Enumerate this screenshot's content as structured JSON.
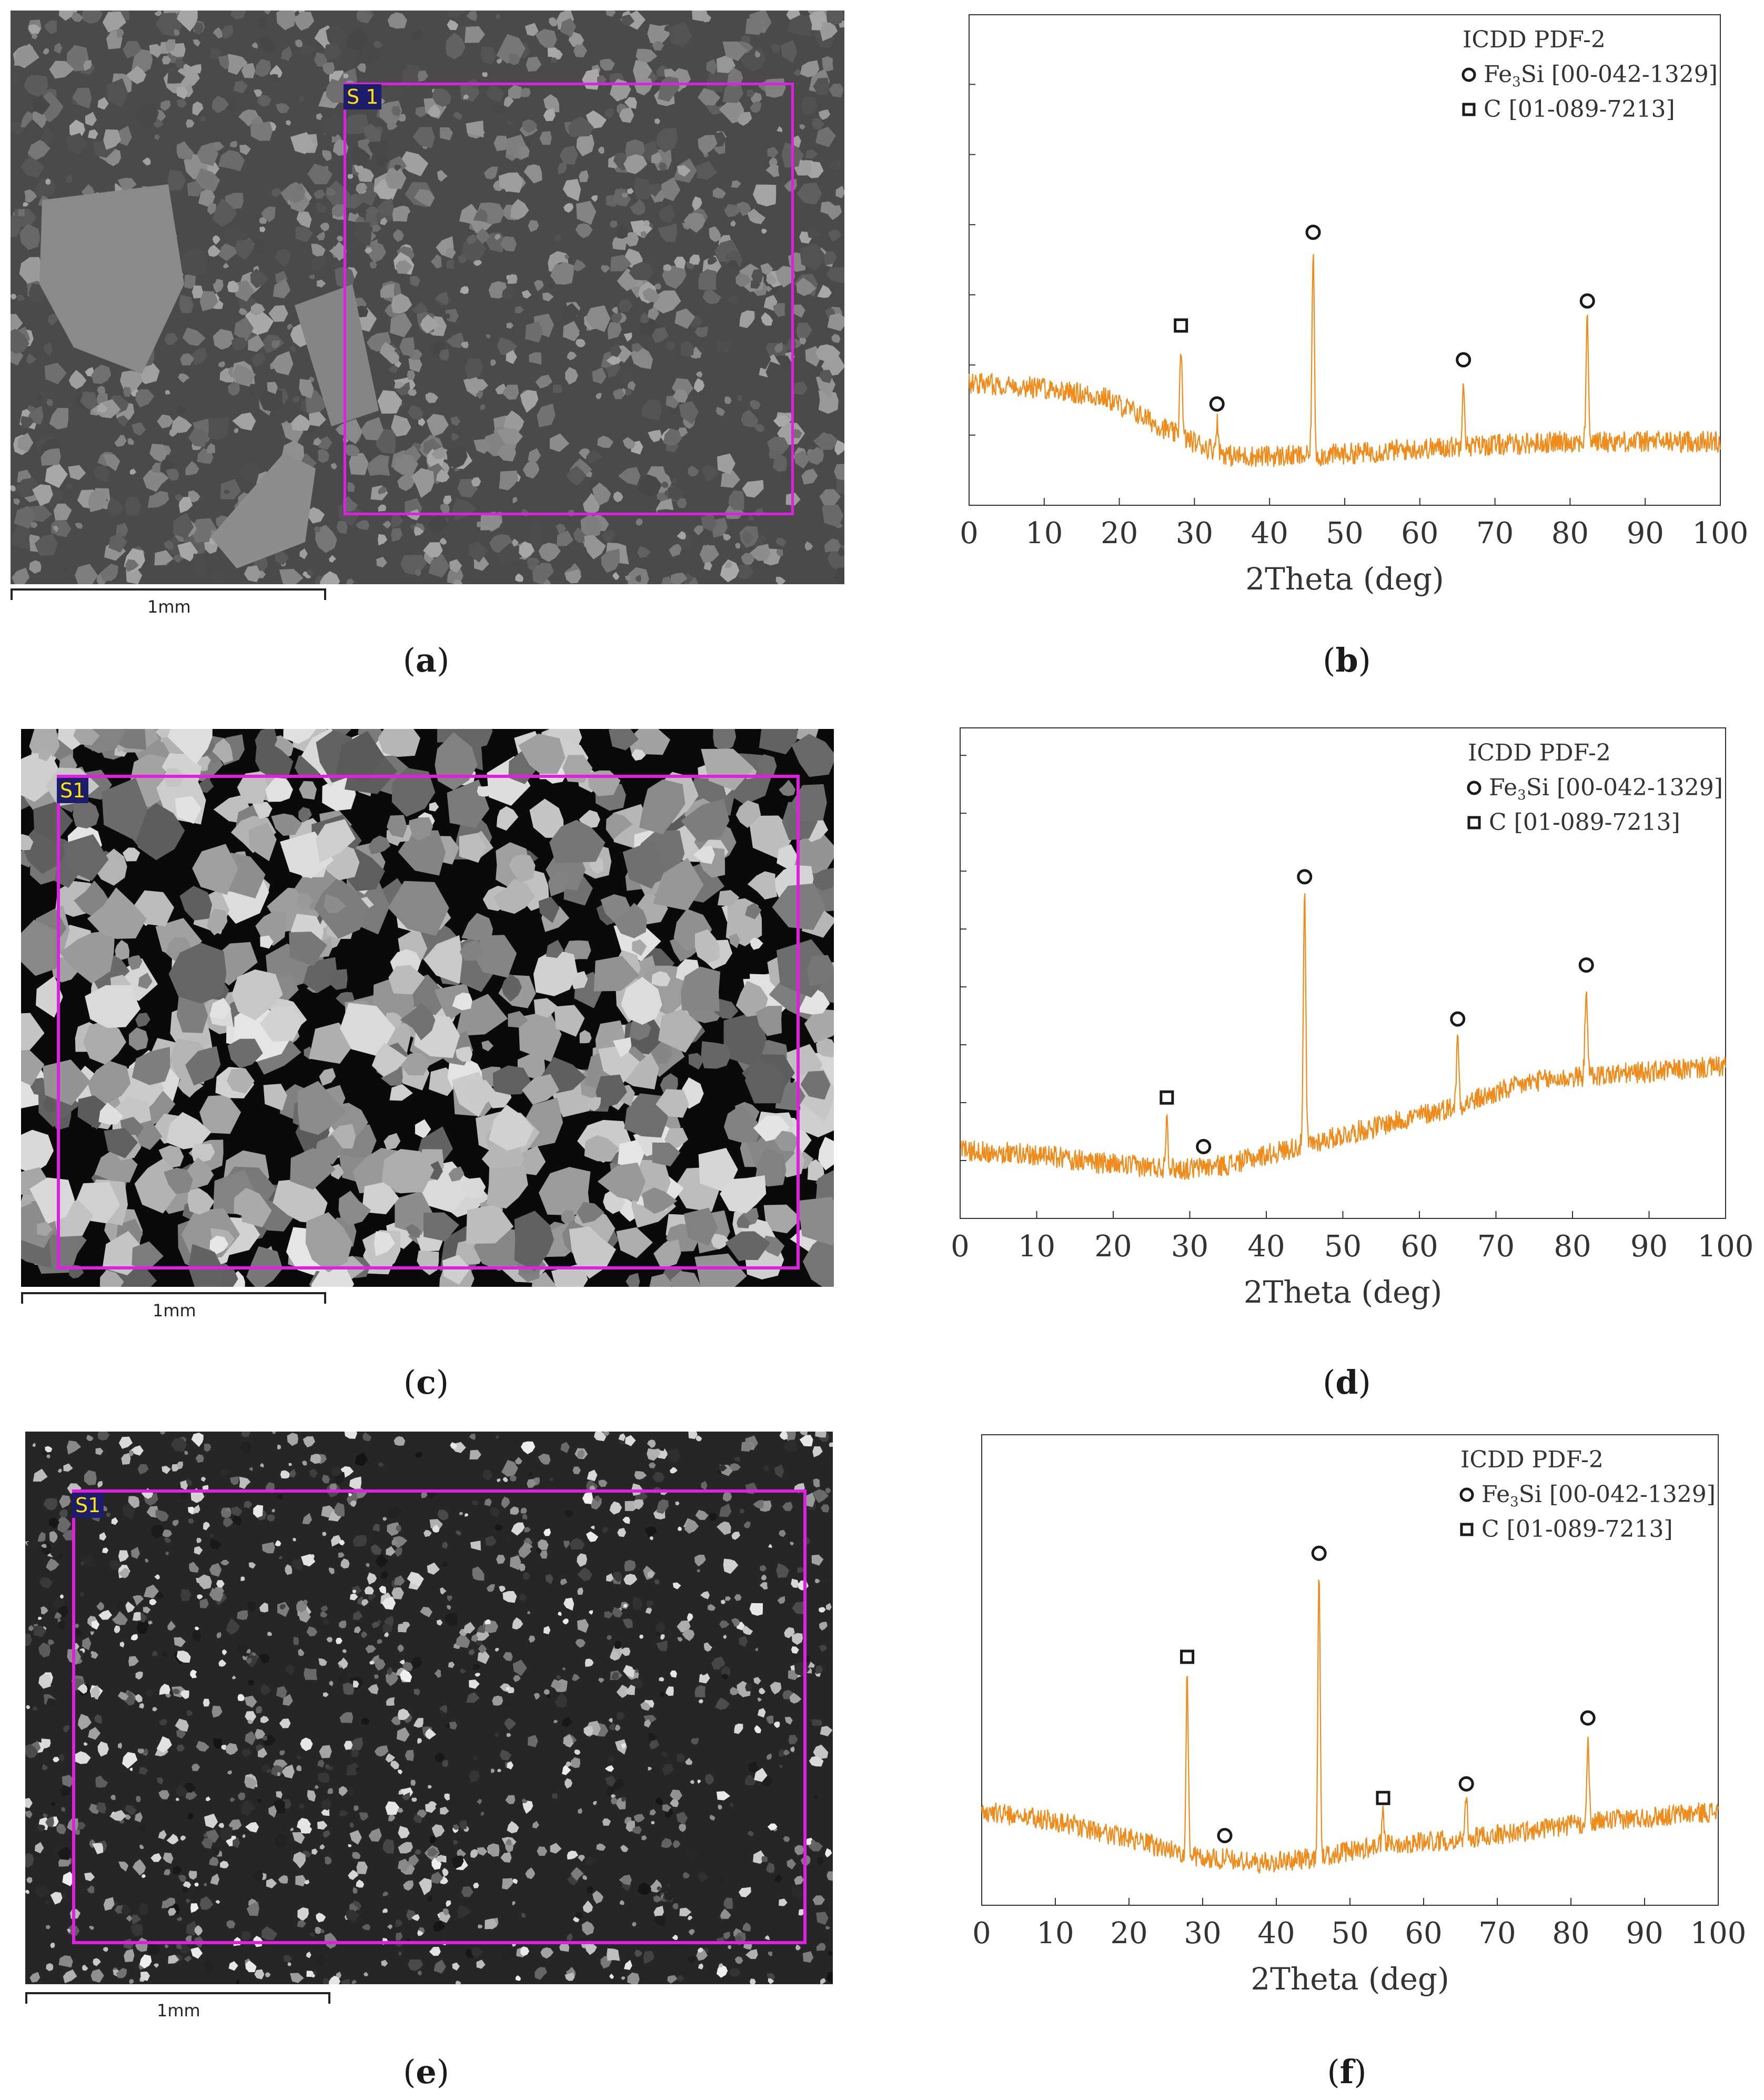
{
  "sem_panels": [
    {
      "id": "a",
      "caption_letter": "a",
      "region_label": "S 1",
      "scale_label": "1mm",
      "style": "grey"
    },
    {
      "id": "c",
      "caption_letter": "c",
      "region_label": "S1",
      "scale_label": "1mm",
      "style": "contrast"
    },
    {
      "id": "e",
      "caption_letter": "e",
      "region_label": "S1",
      "scale_label": "1mm",
      "style": "speckle"
    }
  ],
  "legend": {
    "title": "ICDD PDF-2",
    "entries": [
      {
        "marker": "circle",
        "formula_main": "Fe",
        "formula_sub": "3",
        "formula_rest": "Si",
        "ref": "[00-042-1329]"
      },
      {
        "marker": "square",
        "formula_main": "C",
        "formula_sub": "",
        "formula_rest": "",
        "ref": "[01-089-7213]"
      }
    ]
  },
  "colors": {
    "trace": "#f08a18",
    "accent_magenta": "#e020e0",
    "marker": "#1a1a1a"
  },
  "chart_data": [
    {
      "type": "line",
      "panel": "b",
      "caption_letter": "b",
      "xlabel": "2Theta (deg)",
      "ylabel": "",
      "xlim": [
        0,
        100
      ],
      "xticks": [
        0,
        10,
        20,
        30,
        40,
        50,
        60,
        70,
        80,
        90,
        100
      ],
      "ylim": [
        0,
        100
      ],
      "yticks": [
        0,
        14.3,
        28.6,
        42.9,
        57.2,
        71.5,
        85.8,
        100
      ],
      "grid": false,
      "legend_position": "top-right",
      "baseline": [
        [
          0,
          25
        ],
        [
          10,
          24
        ],
        [
          18,
          22
        ],
        [
          22,
          19
        ],
        [
          28,
          14
        ],
        [
          35,
          10
        ],
        [
          45,
          10
        ],
        [
          55,
          11
        ],
        [
          65,
          12
        ],
        [
          80,
          13
        ],
        [
          100,
          13
        ]
      ],
      "peaks": [
        {
          "x": 28.2,
          "y": 33,
          "phase": "C"
        },
        {
          "x": 33.0,
          "y": 17,
          "phase": "Fe3Si"
        },
        {
          "x": 45.8,
          "y": 52,
          "phase": "Fe3Si"
        },
        {
          "x": 65.8,
          "y": 26,
          "phase": "Fe3Si"
        },
        {
          "x": 82.3,
          "y": 38,
          "phase": "Fe3Si"
        }
      ]
    },
    {
      "type": "line",
      "panel": "d",
      "caption_letter": "d",
      "xlabel": "2Theta (deg)",
      "ylabel": "",
      "xlim": [
        0,
        100
      ],
      "xticks": [
        0,
        10,
        20,
        30,
        40,
        50,
        60,
        70,
        80,
        90,
        100
      ],
      "ylim": [
        0,
        100
      ],
      "yticks": [
        0,
        11.8,
        23.6,
        35.4,
        47.2,
        59,
        70.8,
        82.6,
        94.4
      ],
      "grid": false,
      "legend_position": "top-right",
      "baseline": [
        [
          0,
          14
        ],
        [
          10,
          13
        ],
        [
          20,
          11
        ],
        [
          30,
          10
        ],
        [
          35,
          11
        ],
        [
          45,
          15
        ],
        [
          55,
          19
        ],
        [
          65,
          23
        ],
        [
          75,
          28
        ],
        [
          82,
          29
        ],
        [
          100,
          31
        ]
      ],
      "peaks": [
        {
          "x": 27.0,
          "y": 21,
          "phase": "C"
        },
        {
          "x": 31.8,
          "y": 11,
          "phase": "Fe3Si"
        },
        {
          "x": 45.0,
          "y": 66,
          "phase": "Fe3Si"
        },
        {
          "x": 65.0,
          "y": 37,
          "phase": "Fe3Si"
        },
        {
          "x": 81.8,
          "y": 48,
          "phase": "Fe3Si"
        }
      ]
    },
    {
      "type": "line",
      "panel": "f",
      "caption_letter": "f",
      "xlabel": "2Theta (deg)",
      "ylabel": "",
      "xlim": [
        0,
        100
      ],
      "xticks": [
        0,
        10,
        20,
        30,
        40,
        50,
        60,
        70,
        80,
        90,
        100
      ],
      "ylim": [
        0,
        100
      ],
      "yticks": [],
      "grid": false,
      "legend_position": "top-right",
      "baseline": [
        [
          0,
          20
        ],
        [
          10,
          18
        ],
        [
          20,
          14
        ],
        [
          30,
          10
        ],
        [
          38,
          9
        ],
        [
          45,
          10
        ],
        [
          55,
          13
        ],
        [
          65,
          14
        ],
        [
          75,
          16
        ],
        [
          85,
          18
        ],
        [
          100,
          20
        ]
      ],
      "peaks": [
        {
          "x": 27.9,
          "y": 49,
          "phase": "C"
        },
        {
          "x": 33.0,
          "y": 11,
          "phase": "Fe3Si"
        },
        {
          "x": 45.8,
          "y": 71,
          "phase": "Fe3Si"
        },
        {
          "x": 54.5,
          "y": 19,
          "phase": "C"
        },
        {
          "x": 65.8,
          "y": 22,
          "phase": "Fe3Si"
        },
        {
          "x": 82.3,
          "y": 36,
          "phase": "Fe3Si"
        }
      ]
    }
  ]
}
